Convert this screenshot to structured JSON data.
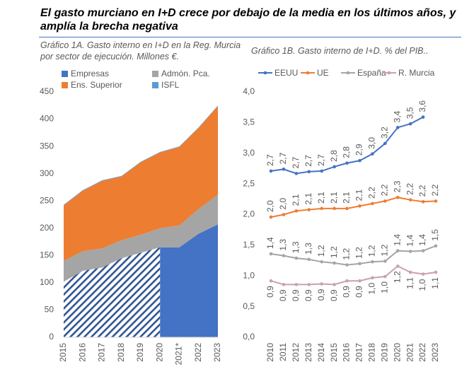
{
  "title": "El gasto murciano en I+D crece por debajo de la media en los últimos años, y amplía la brecha negativa",
  "chart_data": [
    {
      "type": "stacked_area",
      "title": "Gráfico 1A. Gasto interno en I+D en la Reg. Murcia por sector de ejecución. Millones €.",
      "categories": [
        "2015",
        "2016",
        "2017",
        "2018",
        "2019",
        "2020",
        "2021*",
        "2022",
        "2023"
      ],
      "series": [
        {
          "name": "Empresas",
          "color": "#4472c4",
          "values": [
            102,
            122,
            128,
            145,
            155,
            165,
            165,
            190,
            207
          ]
        },
        {
          "name": "Admón. Pca.",
          "color": "#a5a5a5",
          "values": [
            38,
            36,
            35,
            33,
            33,
            35,
            40,
            45,
            55
          ]
        },
        {
          "name": "Ens. Superior",
          "color": "#ed7d31",
          "values": [
            102,
            111,
            124,
            117,
            133,
            139,
            144,
            149,
            162
          ]
        },
        {
          "name": "ISFL",
          "color": "#5b9bd5",
          "values": [
            1,
            1,
            1,
            1,
            1,
            1,
            1,
            1,
            1
          ]
        }
      ],
      "ylim": [
        0,
        450
      ],
      "yticks": [
        0,
        50,
        100,
        150,
        200,
        250,
        300,
        350,
        400,
        450
      ],
      "grid": false
    },
    {
      "type": "line",
      "title": "Gráfico 1B. Gasto interno de I+D. % del PIB..",
      "categories": [
        "2010",
        "2011",
        "2012",
        "2013",
        "2014",
        "2015",
        "2016",
        "2017",
        "2018",
        "2019",
        "2020",
        "2021",
        "2022",
        "2023"
      ],
      "series": [
        {
          "name": "EEUU",
          "color": "#4472c4",
          "values": [
            2.71,
            2.74,
            2.67,
            2.7,
            2.71,
            2.78,
            2.84,
            2.88,
            2.99,
            3.16,
            3.42,
            3.48,
            3.59,
            null
          ],
          "value_labels": [
            "2,7",
            "2,7",
            "2,7",
            "2,7",
            "2,7",
            "2,8",
            "2,8",
            "2,9",
            "3,0",
            "3,2",
            "3,4",
            "3,5",
            "3,6",
            null
          ]
        },
        {
          "name": "UE",
          "color": "#ed7d31",
          "values": [
            1.96,
            2.0,
            2.06,
            2.08,
            2.1,
            2.1,
            2.1,
            2.14,
            2.18,
            2.22,
            2.28,
            2.24,
            2.21,
            2.22
          ],
          "value_labels": [
            "2,0",
            "2,0",
            "2,1",
            "2,1",
            "2,1",
            "2,1",
            "2,1",
            "2,1",
            "2,2",
            "2,2",
            "2,3",
            "2,2",
            "2,2",
            "2,2"
          ]
        },
        {
          "name": "España",
          "color": "#a5a5a5",
          "values": [
            1.36,
            1.33,
            1.29,
            1.27,
            1.23,
            1.21,
            1.18,
            1.2,
            1.23,
            1.24,
            1.41,
            1.4,
            1.41,
            1.49
          ],
          "value_labels": [
            "1,4",
            "1,3",
            "1,3",
            "1,3",
            "1,2",
            "1,2",
            "1,2",
            "1,2",
            "1,2",
            "1,2",
            "1,4",
            "1,4",
            "1,4",
            "1,5"
          ]
        },
        {
          "name": "R. Murcia",
          "color": "#c9a0b4",
          "values": [
            0.92,
            0.86,
            0.86,
            0.86,
            0.87,
            0.86,
            0.92,
            0.92,
            0.97,
            0.99,
            1.16,
            1.06,
            1.03,
            1.06
          ],
          "value_labels": [
            "0,9",
            "0,9",
            "0,9",
            "0,9",
            "0,9",
            "0,9",
            "0,9",
            "0,9",
            "1,0",
            "1,0",
            "1,2",
            "1,1",
            "1,0",
            "1,1"
          ]
        }
      ],
      "ylim": [
        0,
        4
      ],
      "yticks": [
        {
          "value": 0,
          "label": "0,0"
        },
        {
          "value": 0.5,
          "label": "0,5"
        },
        {
          "value": 1,
          "label": "1,0"
        },
        {
          "value": 1.5,
          "label": "1,5"
        },
        {
          "value": 2,
          "label": "2,0"
        },
        {
          "value": 2.5,
          "label": "2,5"
        },
        {
          "value": 3,
          "label": "3,0"
        },
        {
          "value": 3.5,
          "label": "3,5"
        },
        {
          "value": 4,
          "label": "4,0"
        }
      ],
      "grid": false
    }
  ]
}
